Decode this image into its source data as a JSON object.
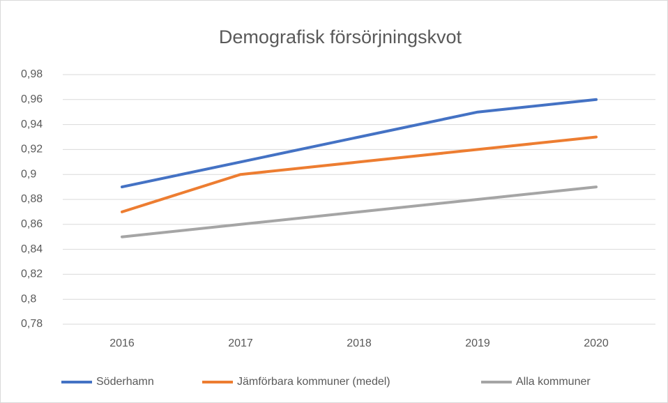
{
  "chart_data": {
    "type": "line",
    "title": "Demografisk försörjningskvot",
    "categories": [
      "2016",
      "2017",
      "2018",
      "2019",
      "2020"
    ],
    "series": [
      {
        "name": "Söderhamn",
        "color": "#4472c4",
        "values": [
          0.89,
          0.91,
          0.93,
          0.95,
          0.96
        ]
      },
      {
        "name": "Jämförbara kommuner (medel)",
        "color": "#ed7d31",
        "values": [
          0.87,
          0.9,
          0.91,
          0.92,
          0.93
        ]
      },
      {
        "name": "Alla kommuner",
        "color": "#a5a5a5",
        "values": [
          0.85,
          0.86,
          0.87,
          0.88,
          0.89
        ]
      }
    ],
    "ylim": [
      0.78,
      0.98
    ],
    "yticks": [
      {
        "value": 0.78,
        "label": "0,78"
      },
      {
        "value": 0.8,
        "label": "0,8"
      },
      {
        "value": 0.82,
        "label": "0,82"
      },
      {
        "value": 0.84,
        "label": "0,84"
      },
      {
        "value": 0.86,
        "label": "0,86"
      },
      {
        "value": 0.88,
        "label": "0,88"
      },
      {
        "value": 0.9,
        "label": "0,9"
      },
      {
        "value": 0.92,
        "label": "0,92"
      },
      {
        "value": 0.94,
        "label": "0,94"
      },
      {
        "value": 0.96,
        "label": "0,96"
      },
      {
        "value": 0.98,
        "label": "0,98"
      }
    ],
    "grid": true,
    "legend": "bottom"
  }
}
